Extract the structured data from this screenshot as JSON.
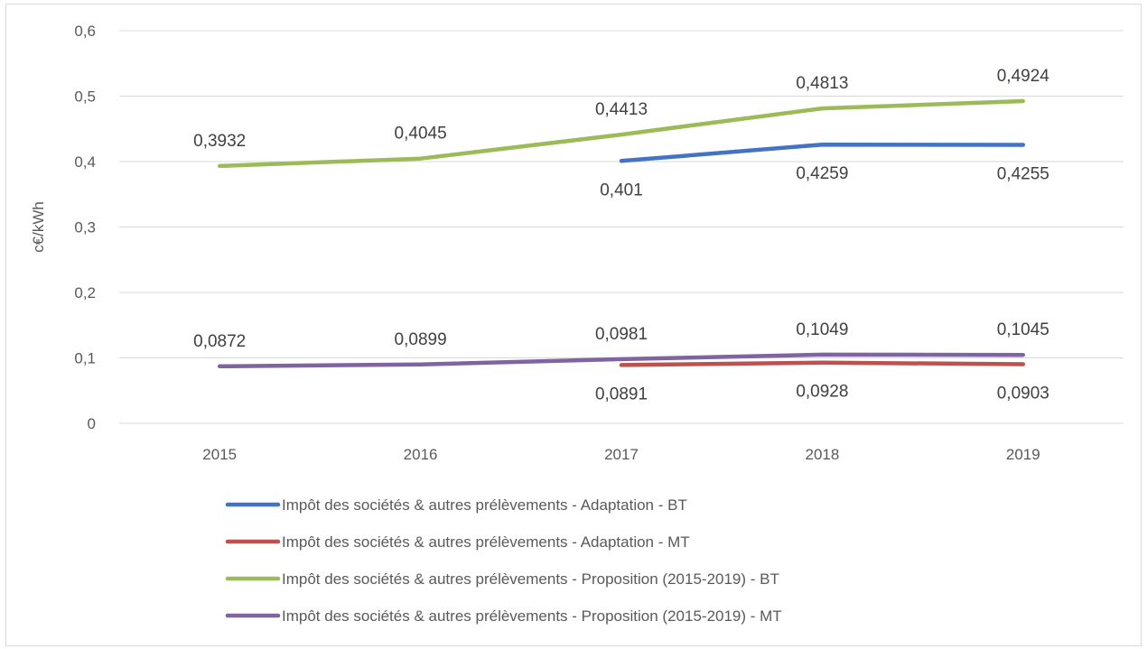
{
  "chart_data": {
    "type": "line",
    "title": "",
    "xlabel": "",
    "ylabel": "c€/kWh",
    "categories": [
      "2015",
      "2016",
      "2017",
      "2018",
      "2019"
    ],
    "ylim": [
      0,
      0.6
    ],
    "yticks": [
      0,
      0.1,
      0.2,
      0.3,
      0.4,
      0.5,
      0.6
    ],
    "ytick_labels": [
      "0",
      "0,1",
      "0,2",
      "0,3",
      "0,4",
      "0,5",
      "0,6"
    ],
    "grid": true,
    "legend_position": "bottom",
    "series": [
      {
        "name": "Impôt des sociétés & autres prélèvements - Adaptation - BT",
        "color": "#4472c4",
        "values": [
          null,
          null,
          0.401,
          0.4259,
          0.4255
        ],
        "labels": [
          null,
          null,
          "0,401",
          "0,4259",
          "0,4255"
        ],
        "label_position": "below"
      },
      {
        "name": "Impôt des sociétés & autres prélèvements - Adaptation - MT",
        "color": "#c0504d",
        "values": [
          null,
          null,
          0.0891,
          0.0928,
          0.0903
        ],
        "labels": [
          null,
          null,
          "0,0891",
          "0,0928",
          "0,0903"
        ],
        "label_position": "below"
      },
      {
        "name": "Impôt des sociétés & autres prélèvements - Proposition (2015-2019) - BT",
        "color": "#9bbb59",
        "values": [
          0.3932,
          0.4045,
          0.4413,
          0.4813,
          0.4924
        ],
        "labels": [
          "0,3932",
          "0,4045",
          "0,4413",
          "0,4813",
          "0,4924"
        ],
        "label_position": "above"
      },
      {
        "name": "Impôt des sociétés & autres prélèvements - Proposition (2015-2019) - MT",
        "color": "#8064a2",
        "values": [
          0.0872,
          0.0899,
          0.0981,
          0.1049,
          0.1045
        ],
        "labels": [
          "0,0872",
          "0,0899",
          "0,0981",
          "0,1049",
          "0,1045"
        ],
        "label_position": "above"
      }
    ]
  }
}
